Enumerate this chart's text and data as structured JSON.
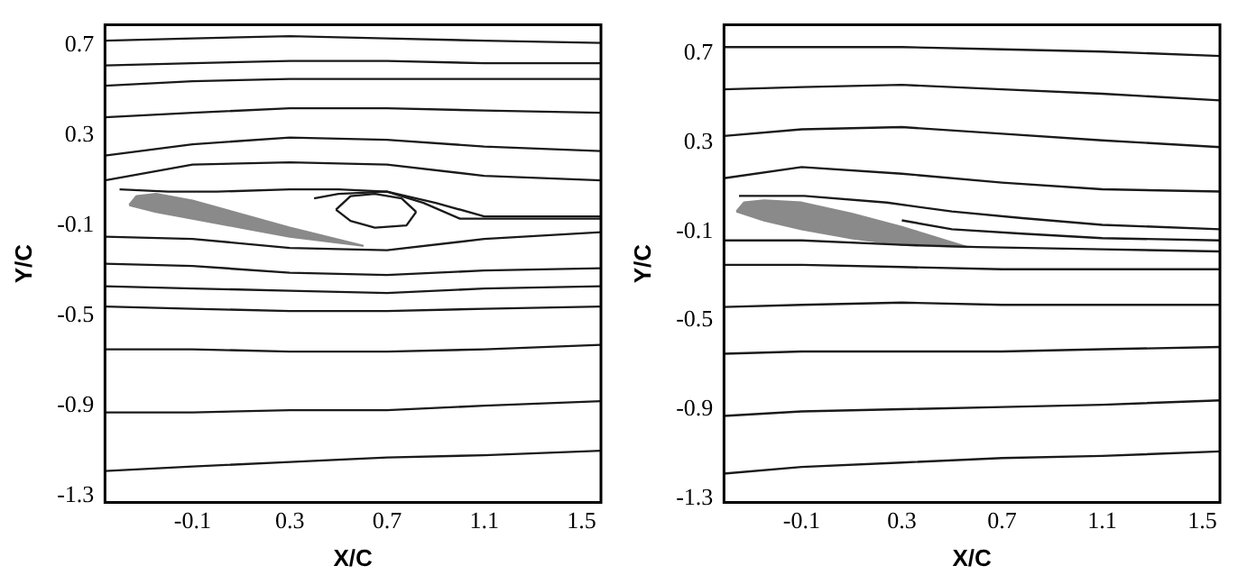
{
  "chart_data": [
    {
      "type": "line",
      "xlabel": "X/C",
      "ylabel": "Y/C",
      "xlim": [
        -0.46,
        1.58
      ],
      "ylim": [
        -1.33,
        0.79
      ],
      "xticks": [
        -0.1,
        0.3,
        0.7,
        1.1,
        1.5
      ],
      "yticks": [
        -1.3,
        -0.9,
        -0.5,
        -0.1,
        0.3,
        0.7
      ],
      "grid": false,
      "legend": false,
      "marker": "none",
      "series": [
        {
          "color": "#1a1a1a",
          "x": [
            -0.46,
            -0.1,
            0.3,
            0.7,
            1.1,
            1.58
          ],
          "values": [
            0.72,
            0.73,
            0.74,
            0.73,
            0.72,
            0.71
          ]
        },
        {
          "color": "#1a1a1a",
          "x": [
            -0.46,
            -0.1,
            0.3,
            0.7,
            1.1,
            1.58
          ],
          "values": [
            0.61,
            0.62,
            0.63,
            0.63,
            0.62,
            0.62
          ]
        },
        {
          "color": "#1a1a1a",
          "x": [
            -0.46,
            -0.1,
            0.3,
            0.7,
            1.1,
            1.58
          ],
          "values": [
            0.52,
            0.54,
            0.55,
            0.55,
            0.55,
            0.55
          ]
        },
        {
          "color": "#1a1a1a",
          "x": [
            -0.46,
            -0.1,
            0.3,
            0.7,
            1.1,
            1.58
          ],
          "values": [
            0.38,
            0.4,
            0.42,
            0.42,
            0.41,
            0.4
          ]
        },
        {
          "color": "#1a1a1a",
          "x": [
            -0.46,
            -0.1,
            0.3,
            0.7,
            1.1,
            1.58
          ],
          "values": [
            0.21,
            0.26,
            0.29,
            0.28,
            0.25,
            0.23
          ]
        },
        {
          "color": "#1a1a1a",
          "x": [
            -0.46,
            -0.1,
            0.3,
            0.7,
            1.1,
            1.58
          ],
          "values": [
            0.1,
            0.17,
            0.18,
            0.17,
            0.12,
            0.1
          ]
        },
        {
          "color": "#1a1a1a",
          "x": [
            -0.4,
            -0.2,
            0.0,
            0.3,
            0.5,
            0.7,
            0.9,
            1.1,
            1.58
          ],
          "values": [
            0.06,
            0.05,
            0.05,
            0.06,
            0.06,
            0.05,
            0.0,
            -0.06,
            -0.06
          ]
        },
        {
          "color": "#1a1a1a",
          "x": [
            0.4,
            0.5,
            0.7,
            0.85,
            1.0,
            1.58
          ],
          "values": [
            0.02,
            0.04,
            0.05,
            0.0,
            -0.07,
            -0.07
          ]
        },
        {
          "color": "#1a1a1a",
          "x": [
            0.49,
            0.55,
            0.65,
            0.76,
            0.82
          ],
          "values": [
            -0.03,
            0.03,
            0.04,
            0.02,
            -0.04
          ]
        },
        {
          "color": "#1a1a1a",
          "x": [
            0.49,
            0.55,
            0.65,
            0.78,
            0.82
          ],
          "values": [
            -0.03,
            -0.08,
            -0.11,
            -0.1,
            -0.04
          ]
        },
        {
          "color": "#1a1a1a",
          "x": [
            -0.46,
            -0.1,
            0.3,
            0.7,
            1.1,
            1.58
          ],
          "values": [
            -0.15,
            -0.16,
            -0.2,
            -0.21,
            -0.16,
            -0.13
          ]
        },
        {
          "color": "#1a1a1a",
          "x": [
            -0.46,
            -0.1,
            0.3,
            0.7,
            1.1,
            1.58
          ],
          "values": [
            -0.27,
            -0.28,
            -0.31,
            -0.32,
            -0.3,
            -0.29
          ]
        },
        {
          "color": "#1a1a1a",
          "x": [
            -0.46,
            -0.1,
            0.3,
            0.7,
            1.1,
            1.58
          ],
          "values": [
            -0.37,
            -0.38,
            -0.39,
            -0.4,
            -0.38,
            -0.37
          ]
        },
        {
          "color": "#1a1a1a",
          "x": [
            -0.46,
            -0.1,
            0.3,
            0.7,
            1.1,
            1.58
          ],
          "values": [
            -0.46,
            -0.47,
            -0.48,
            -0.48,
            -0.47,
            -0.46
          ]
        },
        {
          "color": "#1a1a1a",
          "x": [
            -0.46,
            -0.1,
            0.3,
            0.7,
            1.1,
            1.58
          ],
          "values": [
            -0.65,
            -0.65,
            -0.66,
            -0.66,
            -0.65,
            -0.63
          ]
        },
        {
          "color": "#1a1a1a",
          "x": [
            -0.46,
            -0.1,
            0.3,
            0.7,
            1.1,
            1.58
          ],
          "values": [
            -0.93,
            -0.93,
            -0.92,
            -0.92,
            -0.9,
            -0.88
          ]
        },
        {
          "color": "#1a1a1a",
          "x": [
            -0.46,
            -0.1,
            0.3,
            0.7,
            1.1,
            1.58
          ],
          "values": [
            -1.19,
            -1.17,
            -1.15,
            -1.13,
            -1.12,
            -1.1
          ]
        },
        {
          "type": "area",
          "color": "#8a8a8a",
          "x": [
            -0.36,
            -0.33,
            -0.25,
            -0.1,
            0.1,
            0.3,
            0.6,
            0.3,
            0.1,
            -0.1,
            -0.25,
            -0.36
          ],
          "values": [
            -0.01,
            0.03,
            0.04,
            0.01,
            -0.05,
            -0.11,
            -0.19,
            -0.15,
            -0.11,
            -0.07,
            -0.04,
            -0.01
          ]
        }
      ]
    },
    {
      "type": "line",
      "xlabel": "X/C",
      "ylabel": "Y/C",
      "xlim": [
        -0.41,
        1.57
      ],
      "ylim": [
        -1.32,
        0.83
      ],
      "xticks": [
        -0.1,
        0.3,
        0.7,
        1.1,
        1.5
      ],
      "yticks": [
        -1.3,
        -0.9,
        -0.5,
        -0.1,
        0.3,
        0.7
      ],
      "grid": false,
      "legend": false,
      "marker": "none",
      "series": [
        {
          "color": "#1a1a1a",
          "x": [
            -0.41,
            -0.1,
            0.3,
            0.7,
            1.1,
            1.57
          ],
          "values": [
            0.73,
            0.73,
            0.73,
            0.72,
            0.71,
            0.69
          ]
        },
        {
          "color": "#1a1a1a",
          "x": [
            -0.41,
            -0.1,
            0.3,
            0.7,
            1.1,
            1.57
          ],
          "values": [
            0.54,
            0.55,
            0.56,
            0.54,
            0.52,
            0.49
          ]
        },
        {
          "color": "#1a1a1a",
          "x": [
            -0.41,
            -0.1,
            0.3,
            0.7,
            1.1,
            1.57
          ],
          "values": [
            0.33,
            0.36,
            0.37,
            0.34,
            0.31,
            0.28
          ]
        },
        {
          "color": "#1a1a1a",
          "x": [
            -0.41,
            -0.1,
            0.3,
            0.7,
            1.1,
            1.57
          ],
          "values": [
            0.14,
            0.19,
            0.16,
            0.12,
            0.09,
            0.08
          ]
        },
        {
          "color": "#1a1a1a",
          "x": [
            -0.35,
            -0.09,
            0.24,
            0.5,
            0.78,
            1.1,
            1.57
          ],
          "values": [
            0.06,
            0.06,
            0.03,
            -0.01,
            -0.04,
            -0.07,
            -0.09
          ]
        },
        {
          "color": "#1a1a1a",
          "x": [
            0.3,
            0.5,
            0.78,
            1.1,
            1.57
          ],
          "values": [
            -0.05,
            -0.09,
            -0.11,
            -0.13,
            -0.14
          ]
        },
        {
          "color": "#1a1a1a",
          "x": [
            -0.41,
            -0.1,
            0.3,
            0.6,
            1.1,
            1.57
          ],
          "values": [
            -0.14,
            -0.14,
            -0.16,
            -0.17,
            -0.18,
            -0.19
          ]
        },
        {
          "color": "#1a1a1a",
          "x": [
            -0.41,
            -0.1,
            0.3,
            0.7,
            1.1,
            1.57
          ],
          "values": [
            -0.25,
            -0.25,
            -0.26,
            -0.27,
            -0.27,
            -0.27
          ]
        },
        {
          "color": "#1a1a1a",
          "x": [
            -0.41,
            -0.1,
            0.3,
            0.7,
            1.1,
            1.57
          ],
          "values": [
            -0.44,
            -0.43,
            -0.42,
            -0.43,
            -0.43,
            -0.43
          ]
        },
        {
          "color": "#1a1a1a",
          "x": [
            -0.41,
            -0.1,
            0.3,
            0.7,
            1.1,
            1.57
          ],
          "values": [
            -0.65,
            -0.64,
            -0.64,
            -0.64,
            -0.63,
            -0.62
          ]
        },
        {
          "color": "#1a1a1a",
          "x": [
            -0.41,
            -0.1,
            0.3,
            0.7,
            1.1,
            1.57
          ],
          "values": [
            -0.93,
            -0.91,
            -0.9,
            -0.89,
            -0.88,
            -0.86
          ]
        },
        {
          "color": "#1a1a1a",
          "x": [
            -0.41,
            -0.1,
            0.3,
            0.7,
            1.1,
            1.57
          ],
          "values": [
            -1.19,
            -1.16,
            -1.14,
            -1.12,
            -1.11,
            -1.09
          ]
        },
        {
          "type": "area",
          "color": "#8a8a8a",
          "x": [
            -0.36,
            -0.33,
            -0.25,
            -0.1,
            0.1,
            0.3,
            0.56,
            0.3,
            0.1,
            -0.1,
            -0.25,
            -0.36
          ],
          "values": [
            -0.01,
            0.03,
            0.04,
            0.03,
            -0.02,
            -0.08,
            -0.17,
            -0.16,
            -0.13,
            -0.09,
            -0.05,
            -0.01
          ]
        }
      ]
    }
  ]
}
